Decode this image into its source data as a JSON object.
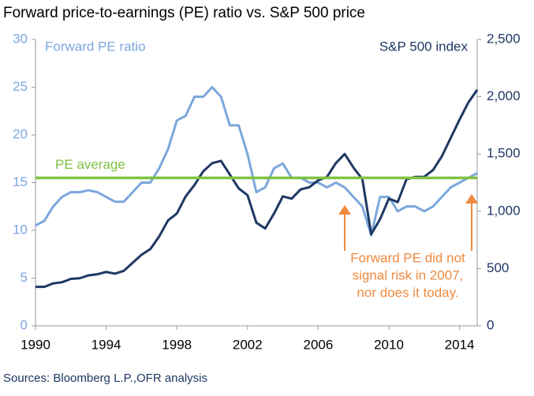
{
  "chart_data": {
    "type": "line",
    "title": "Forward price-to-earnings (PE) ratio vs. S&P 500 price",
    "y_label": "Forward PE ratio",
    "y2_label": "S&P 500 index",
    "source": "Sources: Bloomberg L.P.,OFR analysis",
    "annotation": [
      "Forward PE did not",
      "signal risk in 2007,",
      "nor does it today."
    ],
    "annotation_color": "#ef8a3e",
    "reference_line": {
      "label": "PE average",
      "value": 15.5,
      "color": "#7ec242"
    },
    "x": [
      1990,
      1990.5,
      1991,
      1991.5,
      1992,
      1992.5,
      1993,
      1993.5,
      1994,
      1994.5,
      1995,
      1995.5,
      1996,
      1996.5,
      1997,
      1997.5,
      1998,
      1998.5,
      1999,
      1999.5,
      2000,
      2000.5,
      2001,
      2001.5,
      2002,
      2002.5,
      2003,
      2003.5,
      2004,
      2004.5,
      2005,
      2005.5,
      2006,
      2006.5,
      2007,
      2007.5,
      2008,
      2008.5,
      2009,
      2009.5,
      2010,
      2010.5,
      2011,
      2011.5,
      2012,
      2012.5,
      2013,
      2013.5,
      2014,
      2014.5,
      2015
    ],
    "series": [
      {
        "name": "Forward PE ratio",
        "color": "#7ba7dc",
        "axis": "y",
        "values": [
          10.5,
          11,
          12.5,
          13.5,
          14,
          14,
          14.2,
          14,
          13.5,
          13,
          13,
          14,
          15,
          15,
          16.5,
          18.5,
          21.5,
          22,
          24,
          24,
          25,
          24,
          21,
          21,
          18,
          14,
          14.5,
          16.5,
          17,
          15.5,
          15.5,
          15,
          15,
          14.5,
          15,
          14.5,
          13.5,
          12.5,
          9.5,
          13.5,
          13.5,
          12,
          12.5,
          12.5,
          12,
          12.5,
          13.5,
          14.5,
          15,
          15.5,
          16
        ]
      },
      {
        "name": "S&P 500 index",
        "color": "#1f3864",
        "axis": "y2",
        "values": [
          340,
          340,
          370,
          380,
          410,
          415,
          440,
          450,
          470,
          455,
          480,
          550,
          620,
          670,
          780,
          920,
          980,
          1130,
          1230,
          1350,
          1420,
          1440,
          1320,
          1200,
          1140,
          900,
          850,
          980,
          1130,
          1110,
          1190,
          1210,
          1270,
          1300,
          1420,
          1500,
          1380,
          1280,
          800,
          930,
          1110,
          1080,
          1280,
          1300,
          1300,
          1360,
          1480,
          1640,
          1800,
          1950,
          2060
        ]
      }
    ],
    "xlim": [
      1990,
      2015
    ],
    "xticks": [
      1990,
      1994,
      1998,
      2002,
      2006,
      2010,
      2014
    ],
    "ylim": [
      0,
      30
    ],
    "yticks": [
      0,
      5,
      10,
      15,
      20,
      25,
      30
    ],
    "y2lim": [
      0,
      2500
    ],
    "y2ticks": [
      0,
      500,
      {
        "value": 1000,
        "label": "1,000"
      },
      {
        "value": 1500,
        "label": "1,500"
      },
      {
        "value": 2000,
        "label": "2,000"
      },
      {
        "value": 2500,
        "label": "2,500"
      }
    ],
    "grid": false
  }
}
